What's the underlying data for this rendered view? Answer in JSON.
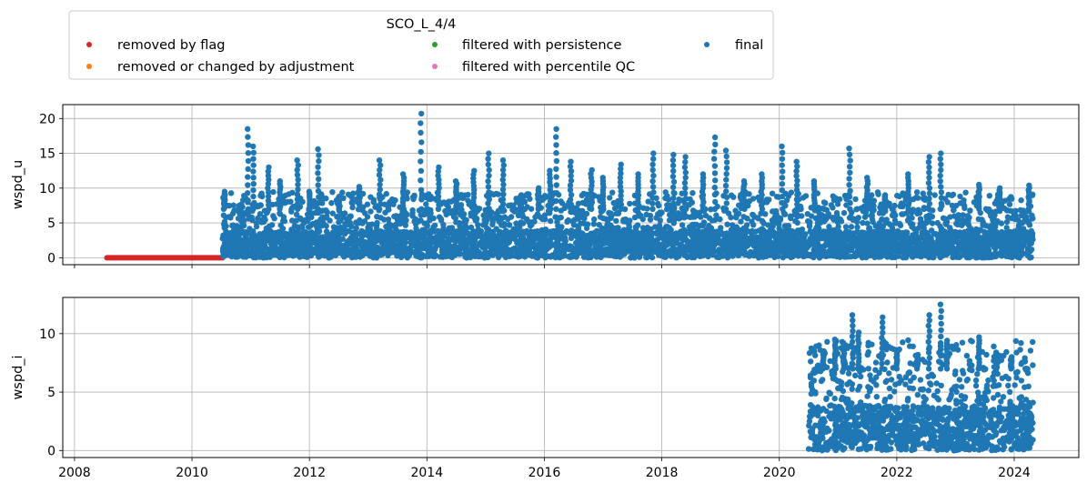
{
  "chart_data": {
    "type": "scatter",
    "title": "SCO_L_4/4",
    "legend": {
      "placement": "top-center",
      "entries": [
        {
          "label": "removed by flag",
          "color": "#d62728"
        },
        {
          "label": "removed or changed by adjustment",
          "color": "#ff7f0e"
        },
        {
          "label": "filtered with persistence",
          "color": "#2ca02c"
        },
        {
          "label": "filtered with percentile QC",
          "color": "#e377c2"
        },
        {
          "label": "final",
          "color": "#1f77b4"
        }
      ]
    },
    "grid": true,
    "xlim": [
      2007.8,
      2025.1
    ],
    "xticks": [
      "2008",
      "2010",
      "2012",
      "2014",
      "2016",
      "2018",
      "2020",
      "2022",
      "2024"
    ],
    "panels": [
      {
        "ylabel": "wspd_u",
        "ylim": [
          -1,
          22
        ],
        "yticks": [
          "0",
          "5",
          "10",
          "15",
          "20"
        ],
        "series": [
          {
            "name": "removed by flag",
            "color": "#d62728",
            "x_range": [
              2008.55,
              2010.52
            ],
            "values": [
              0
            ]
          },
          {
            "name": "final",
            "color": "#1f77b4",
            "x_range": [
              2010.52,
              2024.32
            ],
            "typical_range": [
              0,
              7
            ],
            "peaks": [
              {
                "x": 2010.55,
                "y": 9.5
              },
              {
                "x": 2010.95,
                "y": 18.5
              },
              {
                "x": 2011.05,
                "y": 16
              },
              {
                "x": 2011.3,
                "y": 13
              },
              {
                "x": 2011.5,
                "y": 11
              },
              {
                "x": 2011.8,
                "y": 14
              },
              {
                "x": 2012.0,
                "y": 9.5
              },
              {
                "x": 2012.15,
                "y": 15.6
              },
              {
                "x": 2012.5,
                "y": 8.8
              },
              {
                "x": 2012.85,
                "y": 10.2
              },
              {
                "x": 2013.2,
                "y": 14
              },
              {
                "x": 2013.6,
                "y": 12
              },
              {
                "x": 2013.9,
                "y": 20.7
              },
              {
                "x": 2014.2,
                "y": 13
              },
              {
                "x": 2014.5,
                "y": 11
              },
              {
                "x": 2014.8,
                "y": 12.5
              },
              {
                "x": 2015.05,
                "y": 15
              },
              {
                "x": 2015.3,
                "y": 14
              },
              {
                "x": 2015.6,
                "y": 9
              },
              {
                "x": 2015.9,
                "y": 10
              },
              {
                "x": 2016.1,
                "y": 12.5
              },
              {
                "x": 2016.2,
                "y": 18.5
              },
              {
                "x": 2016.45,
                "y": 13.8
              },
              {
                "x": 2016.8,
                "y": 12.6
              },
              {
                "x": 2017.0,
                "y": 11.5
              },
              {
                "x": 2017.3,
                "y": 13.4
              },
              {
                "x": 2017.6,
                "y": 12
              },
              {
                "x": 2017.85,
                "y": 15
              },
              {
                "x": 2018.2,
                "y": 14.8
              },
              {
                "x": 2018.4,
                "y": 14.5
              },
              {
                "x": 2018.7,
                "y": 12
              },
              {
                "x": 2018.9,
                "y": 17.3
              },
              {
                "x": 2019.1,
                "y": 15.4
              },
              {
                "x": 2019.4,
                "y": 11
              },
              {
                "x": 2019.7,
                "y": 12
              },
              {
                "x": 2020.05,
                "y": 16
              },
              {
                "x": 2020.3,
                "y": 13.8
              },
              {
                "x": 2020.6,
                "y": 11
              },
              {
                "x": 2021.2,
                "y": 15.7
              },
              {
                "x": 2021.5,
                "y": 11.5
              },
              {
                "x": 2021.8,
                "y": 9
              },
              {
                "x": 2022.2,
                "y": 12
              },
              {
                "x": 2022.55,
                "y": 14.5
              },
              {
                "x": 2022.75,
                "y": 15
              },
              {
                "x": 2023.4,
                "y": 10.5
              },
              {
                "x": 2023.75,
                "y": 10
              },
              {
                "x": 2024.25,
                "y": 10.4
              }
            ]
          }
        ]
      },
      {
        "ylabel": "wspd_i",
        "ylim": [
          -0.6,
          13.1
        ],
        "yticks": [
          "0",
          "5",
          "10"
        ],
        "series": [
          {
            "name": "final",
            "color": "#1f77b4",
            "x_range": [
              2020.5,
              2024.32
            ],
            "typical_range": [
              0,
              7
            ],
            "peaks": [
              {
                "x": 2020.75,
                "y": 8.5
              },
              {
                "x": 2020.95,
                "y": 9.5
              },
              {
                "x": 2021.1,
                "y": 9.2
              },
              {
                "x": 2021.25,
                "y": 11.6
              },
              {
                "x": 2021.35,
                "y": 10.1
              },
              {
                "x": 2021.75,
                "y": 11.4
              },
              {
                "x": 2022.0,
                "y": 8.6
              },
              {
                "x": 2022.35,
                "y": 8.2
              },
              {
                "x": 2022.55,
                "y": 11.6
              },
              {
                "x": 2022.75,
                "y": 12.5
              },
              {
                "x": 2022.85,
                "y": 9.4
              },
              {
                "x": 2023.4,
                "y": 9.7
              },
              {
                "x": 2023.7,
                "y": 8.4
              },
              {
                "x": 2023.95,
                "y": 8
              },
              {
                "x": 2024.2,
                "y": 7
              }
            ]
          }
        ]
      }
    ]
  }
}
